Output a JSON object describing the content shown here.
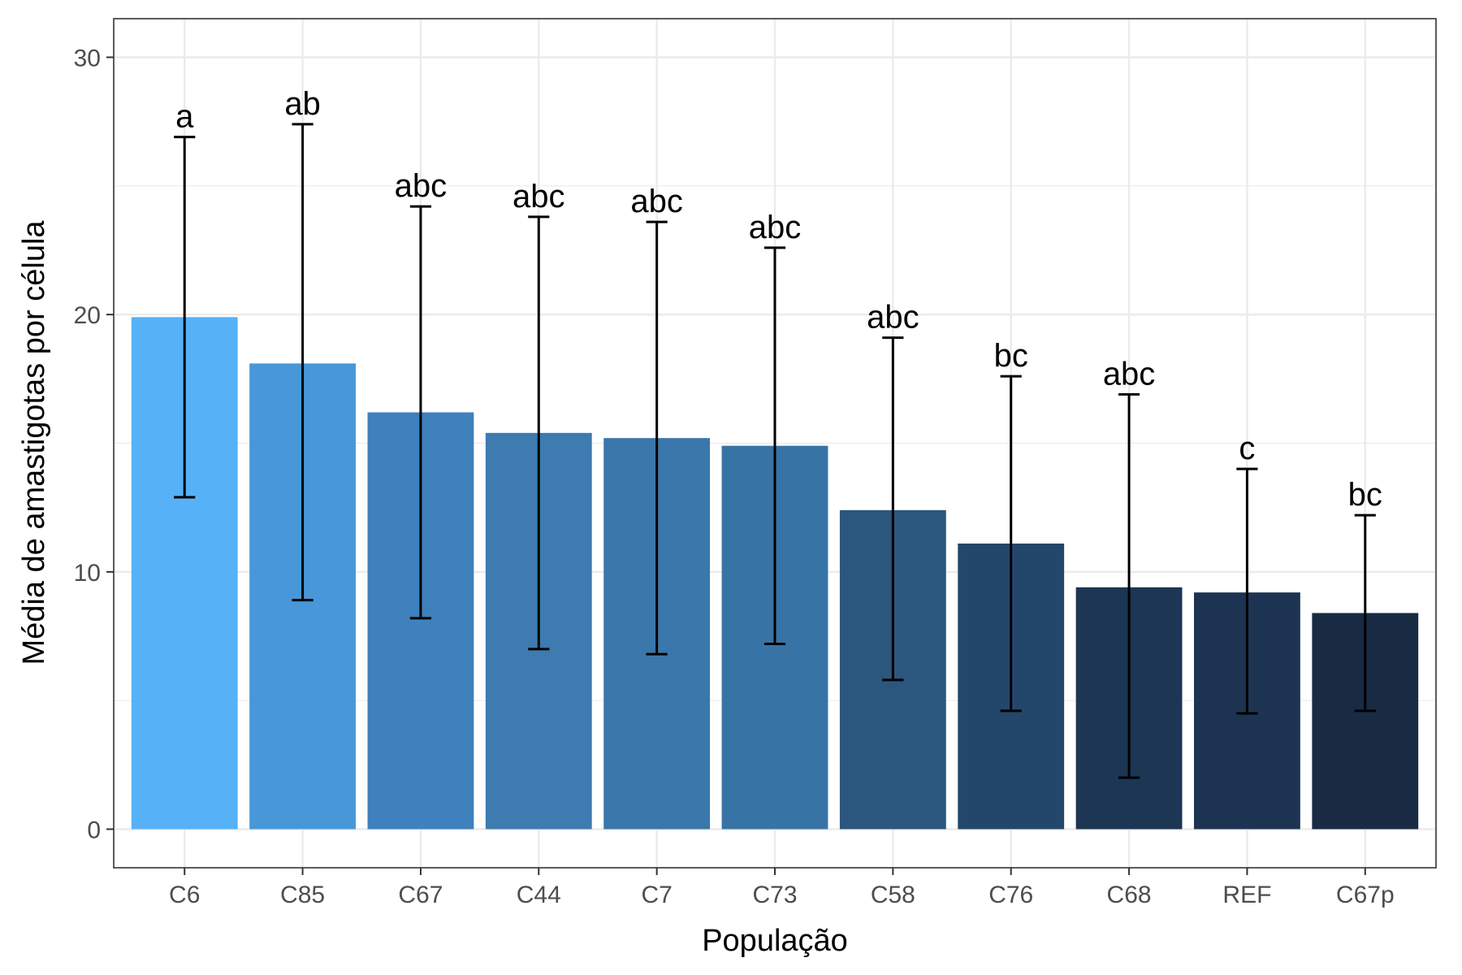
{
  "chart_data": {
    "type": "bar",
    "xlabel": "População",
    "ylabel": "Média de amastigotas por célula",
    "ylim": [
      -1.5,
      31.5
    ],
    "yticks": [
      0,
      10,
      20,
      30
    ],
    "grid": true,
    "legend": "none",
    "categories": [
      "C6",
      "C85",
      "C67",
      "C44",
      "C7",
      "C73",
      "C58",
      "C76",
      "C68",
      "REF",
      "C67p"
    ],
    "values": [
      19.9,
      18.1,
      16.2,
      15.4,
      15.2,
      14.9,
      12.4,
      11.1,
      9.4,
      9.2,
      8.4
    ],
    "error_low": [
      12.9,
      8.9,
      8.2,
      7.0,
      6.8,
      7.2,
      5.8,
      4.6,
      2.0,
      4.5,
      4.6
    ],
    "error_high": [
      26.9,
      27.4,
      24.2,
      23.8,
      23.6,
      22.6,
      19.1,
      17.6,
      16.9,
      14.0,
      12.2
    ],
    "significance_labels": [
      "a",
      "ab",
      "abc",
      "abc",
      "abc",
      "abc",
      "abc",
      "bc",
      "abc",
      "c",
      "bc"
    ],
    "colors": [
      "#56B1F7",
      "#4897D8",
      "#3E81BD",
      "#3D7BB0",
      "#3A77AA",
      "#3873A6",
      "#2B577E",
      "#23476A",
      "#1C3654",
      "#1C3452",
      "#182B43"
    ]
  }
}
